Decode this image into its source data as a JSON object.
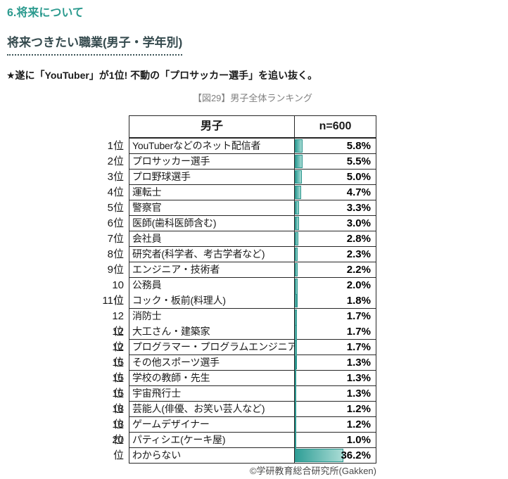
{
  "page": {
    "section_title": "6.将来について",
    "subtitle": "将来つきたい職業(男子・学年別)",
    "highlight": "★遂に「YouTuber」が1位! 不動の「プロサッカー選手」を追い抜く。",
    "credit": "©学研教育総合研究所(Gakken)"
  },
  "colors": {
    "accent_teal": "#2b9a8e",
    "subtitle_text": "#354a4e",
    "caption_gray": "#7f7f7f",
    "bar_fill_start": "#2f9e96",
    "bar_fill_end": "#aadcd5",
    "bar_border": "#2a958d",
    "table_border": "#262626"
  },
  "chart_data": {
    "type": "table",
    "title": "【図29】男子全体ランキング",
    "columns": [
      "男子",
      "n=600"
    ],
    "bar_axis_max": 60,
    "value_unit": "%",
    "rows": [
      {
        "rank": "1位",
        "label": "YouTuberなどのネット配信者",
        "value": 5.8,
        "display": "5.8%"
      },
      {
        "rank": "2位",
        "label": "プロサッカー選手",
        "value": 5.5,
        "display": "5.5%"
      },
      {
        "rank": "3位",
        "label": "プロ野球選手",
        "value": 5.0,
        "display": "5.0%"
      },
      {
        "rank": "4位",
        "label": "運転士",
        "value": 4.7,
        "display": "4.7%"
      },
      {
        "rank": "5位",
        "label": "警察官",
        "value": 3.3,
        "display": "3.3%"
      },
      {
        "rank": "6位",
        "label": "医師(歯科医師含む)",
        "value": 3.0,
        "display": "3.0%"
      },
      {
        "rank": "7位",
        "label": "会社員",
        "value": 2.8,
        "display": "2.8%"
      },
      {
        "rank": "8位",
        "label": "研究者(科学者、考古学者など)",
        "value": 2.3,
        "display": "2.3%"
      },
      {
        "rank": "9位",
        "label": "エンジニア・技術者",
        "value": 2.2,
        "display": "2.2%"
      },
      {
        "rank": "10位",
        "label": "公務員",
        "value": 2.0,
        "display": "2.0%"
      },
      {
        "rank": "11位",
        "label": "コック・板前(料理人)",
        "value": 1.8,
        "display": "1.8%"
      },
      {
        "rank": "12位",
        "label": "消防士",
        "value": 1.7,
        "display": "1.7%"
      },
      {
        "rank": "12位",
        "label": "大工さん・建築家",
        "value": 1.7,
        "display": "1.7%"
      },
      {
        "rank": "12位",
        "label": "プログラマー・プログラムエンジニア",
        "value": 1.7,
        "display": "1.7%"
      },
      {
        "rank": "15位",
        "label": "その他スポーツ選手",
        "value": 1.3,
        "display": "1.3%"
      },
      {
        "rank": "15位",
        "label": "学校の教師・先生",
        "value": 1.3,
        "display": "1.3%"
      },
      {
        "rank": "15位",
        "label": "宇宙飛行士",
        "value": 1.3,
        "display": "1.3%"
      },
      {
        "rank": "18位",
        "label": "芸能人(俳優、お笑い芸人など)",
        "value": 1.2,
        "display": "1.2%"
      },
      {
        "rank": "18位",
        "label": "ゲームデザイナー",
        "value": 1.2,
        "display": "1.2%"
      },
      {
        "rank": "20位",
        "label": "パティシエ(ケーキ屋)",
        "value": 1.0,
        "display": "1.0%"
      },
      {
        "rank": "",
        "label": "わからない",
        "value": 36.2,
        "display": "36.2%"
      }
    ]
  }
}
